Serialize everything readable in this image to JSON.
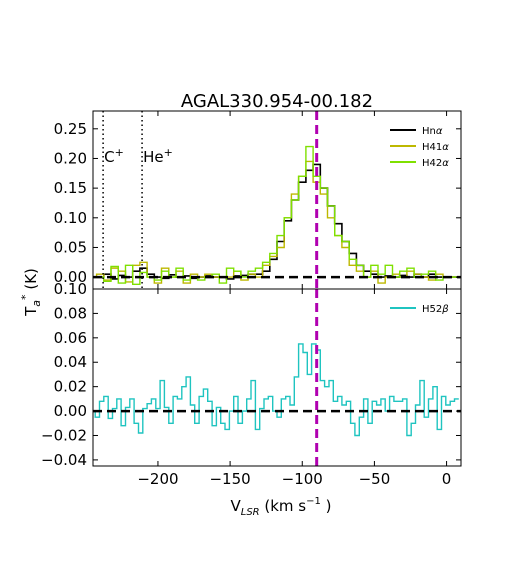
{
  "title": "AGAL330.954-00.182",
  "xlabel": "V$_{LSR}$ (km s$^{-1}$)",
  "xlabel_main": "V",
  "xlabel_sub": "LSR",
  "xlabel_tail": " (km s",
  "xlabel_sup": "−1",
  "xlabel_end": ")",
  "ylabel_main": "T",
  "ylabel_sub": "a",
  "ylabel_sup": "*",
  "ylabel_tail": " (K)",
  "colors": {
    "Hn_alpha": "#000000",
    "H41_alpha": "#bdb800",
    "H42_alpha": "#7fe000",
    "H52_beta": "#1fc4c0",
    "v_marker": "#b000b0"
  },
  "chart_data": [
    {
      "type": "line",
      "step": true,
      "panel": "top",
      "xlim": [
        -245,
        10
      ],
      "ylim": [
        -0.02,
        0.28
      ],
      "yticks": [
        0.0,
        0.05,
        0.1,
        0.15,
        0.2,
        0.25
      ],
      "ytick_labels": [
        "0.00",
        "0.05",
        "0.10",
        "0.15",
        "0.20",
        "0.25"
      ],
      "legend": "top-right",
      "reference_lines": [
        {
          "label": "C$^+$",
          "label_main": "C",
          "label_sup": "+",
          "x": -238,
          "style": "dotted",
          "color": "#000000"
        },
        {
          "label": "He$^+$",
          "label_main": "He",
          "label_sup": "+",
          "x": -211,
          "style": "dotted",
          "color": "#000000"
        },
        {
          "x": -90,
          "style": "dashed",
          "color": "#b000b0"
        },
        {
          "y": 0,
          "style": "dashed",
          "color": "#000000"
        }
      ],
      "x": [
        -245,
        -240,
        -235,
        -230,
        -225,
        -220,
        -215,
        -210,
        -205,
        -200,
        -195,
        -190,
        -185,
        -180,
        -175,
        -170,
        -165,
        -160,
        -155,
        -150,
        -145,
        -140,
        -135,
        -130,
        -125,
        -120,
        -115,
        -110,
        -105,
        -100,
        -95,
        -90,
        -85,
        -80,
        -75,
        -70,
        -65,
        -60,
        -55,
        -50,
        -45,
        -40,
        -35,
        -30,
        -25,
        -20,
        -15,
        -10,
        -5,
        0,
        5,
        10
      ],
      "series": [
        {
          "name": "Hn$\\alpha$",
          "legend_main": "Hn",
          "legend_sub": "α",
          "values": [
            0.0,
            0.0,
            0.005,
            -0.003,
            0.003,
            0.0,
            0.01,
            0.015,
            0.005,
            0.0,
            -0.002,
            0.004,
            0.0,
            0.002,
            -0.002,
            0.0,
            0.002,
            0.0,
            0.0,
            -0.003,
            0.002,
            0.003,
            0.005,
            0.005,
            0.01,
            0.03,
            0.06,
            0.095,
            0.13,
            0.16,
            0.18,
            0.19,
            0.15,
            0.12,
            0.09,
            0.06,
            0.04,
            0.02,
            0.01,
            0.005,
            0.0,
            0.002,
            0.0,
            0.003,
            0.0,
            0.005,
            0.0,
            0.005,
            0.0,
            0.0,
            0.0,
            0.0
          ]
        },
        {
          "name": "H41$\\alpha$",
          "legend_main": "H41",
          "legend_sub": "α",
          "values": [
            0.0,
            0.005,
            -0.005,
            0.015,
            0.01,
            -0.008,
            0.02,
            0.025,
            0.0,
            -0.01,
            0.015,
            0.0,
            0.01,
            -0.01,
            0.005,
            0.0,
            0.005,
            0.0,
            0.0,
            0.0,
            0.01,
            -0.005,
            0.005,
            0.0,
            0.02,
            0.035,
            0.05,
            0.1,
            0.14,
            0.17,
            0.195,
            0.16,
            0.14,
            0.1,
            0.07,
            0.05,
            0.02,
            0.01,
            0.0,
            0.01,
            -0.01,
            0.0,
            0.005,
            0.0,
            0.01,
            0.005,
            0.0,
            -0.005,
            0.005,
            0.0,
            0.0,
            0.0
          ]
        },
        {
          "name": "H42$\\alpha$",
          "legend_main": "H42",
          "legend_sub": "α",
          "values": [
            0.0,
            0.0,
            -0.007,
            0.018,
            -0.01,
            0.02,
            -0.012,
            0.008,
            0.0,
            -0.005,
            0.01,
            0.0,
            0.015,
            -0.005,
            0.0,
            -0.005,
            0.0,
            0.005,
            -0.01,
            0.015,
            0.01,
            0.0,
            0.01,
            0.015,
            0.025,
            0.04,
            0.07,
            0.1,
            0.13,
            0.17,
            0.22,
            0.17,
            0.15,
            0.12,
            0.07,
            0.06,
            0.03,
            0.02,
            0.0,
            0.02,
            0.005,
            0.02,
            0.0,
            0.01,
            0.015,
            0.0,
            0.005,
            0.01,
            -0.005,
            0.0,
            0.0,
            0.0
          ]
        }
      ]
    },
    {
      "type": "line",
      "step": true,
      "panel": "bottom",
      "xlim": [
        -245,
        10
      ],
      "ylim": [
        -0.045,
        0.1
      ],
      "xticks": [
        -200,
        -150,
        -100,
        -50,
        0
      ],
      "xtick_labels": [
        "−200",
        "−150",
        "−100",
        "−50",
        "0"
      ],
      "yticks": [
        -0.04,
        -0.02,
        0.0,
        0.02,
        0.04,
        0.06,
        0.08,
        0.1
      ],
      "ytick_labels": [
        "−0.04",
        "−0.02",
        "0.00",
        "0.02",
        "0.04",
        "0.06",
        "0.08",
        "0.10"
      ],
      "legend": "top-right",
      "reference_lines": [
        {
          "x": -90,
          "style": "dashed",
          "color": "#b000b0"
        },
        {
          "y": 0,
          "style": "dashed",
          "color": "#000000"
        }
      ],
      "x": [
        -245,
        -242,
        -239,
        -236,
        -233,
        -230,
        -227,
        -224,
        -221,
        -218,
        -215,
        -212,
        -209,
        -206,
        -203,
        -200,
        -197,
        -194,
        -191,
        -188,
        -185,
        -182,
        -179,
        -176,
        -173,
        -170,
        -167,
        -164,
        -161,
        -158,
        -155,
        -152,
        -149,
        -146,
        -143,
        -140,
        -137,
        -134,
        -131,
        -128,
        -125,
        -122,
        -119,
        -116,
        -113,
        -110,
        -107,
        -104,
        -101,
        -98,
        -95,
        -92,
        -89,
        -86,
        -83,
        -80,
        -77,
        -74,
        -71,
        -68,
        -65,
        -62,
        -59,
        -56,
        -53,
        -50,
        -47,
        -44,
        -41,
        -38,
        -35,
        -32,
        -29,
        -26,
        -23,
        -20,
        -17,
        -14,
        -11,
        -8,
        -5,
        -2,
        1,
        4,
        7
      ],
      "series": [
        {
          "name": "H52$\\beta$",
          "legend_main": "H52",
          "legend_sub": "β",
          "values": [
            0.0,
            -0.005,
            0.008,
            0.012,
            -0.006,
            0.002,
            0.01,
            -0.012,
            0.003,
            0.01,
            -0.01,
            -0.018,
            0.002,
            0.006,
            0.01,
            0.002,
            0.025,
            0.003,
            -0.01,
            0.012,
            0.01,
            0.02,
            0.028,
            0.005,
            -0.01,
            0.012,
            0.018,
            0.008,
            -0.012,
            0.003,
            -0.01,
            -0.015,
            0.0,
            0.012,
            -0.01,
            0.0,
            0.01,
            0.025,
            -0.015,
            0.002,
            0.01,
            0.012,
            0.0,
            -0.005,
            0.01,
            0.012,
            0.005,
            0.028,
            0.055,
            0.048,
            0.03,
            0.055,
            0.05,
            0.025,
            0.02,
            0.025,
            0.008,
            0.012,
            0.005,
            0.008,
            -0.01,
            -0.02,
            -0.005,
            0.01,
            -0.01,
            0.008,
            0.005,
            0.01,
            0.0,
            0.012,
            0.008,
            0.008,
            0.01,
            -0.02,
            -0.01,
            0.005,
            0.025,
            -0.005,
            0.01,
            0.02,
            -0.015,
            0.012,
            0.005,
            0.008,
            0.01
          ]
        }
      ]
    }
  ]
}
